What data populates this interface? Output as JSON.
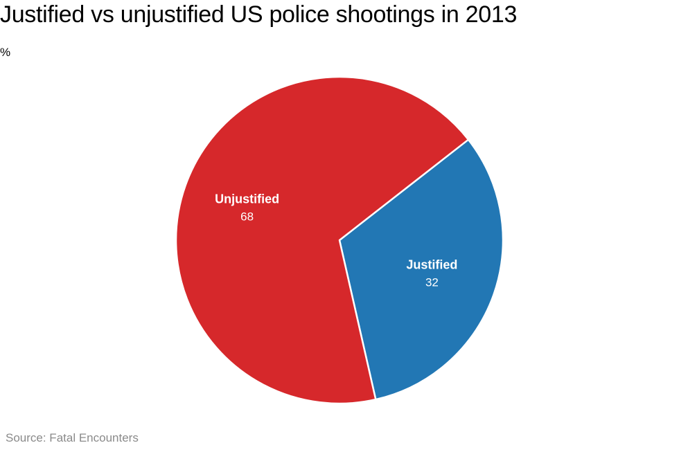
{
  "chart_data": {
    "type": "pie",
    "title": "Justified vs unjustified US police shootings in 2013",
    "unit": "%",
    "source": "Source: Fatal Encounters",
    "slices": [
      {
        "label": "Justified",
        "value": 32,
        "color": "#2277b4"
      },
      {
        "label": "Unjustified",
        "value": 68,
        "color": "#d6282b"
      }
    ],
    "legend": "none",
    "labels_on_slices": true
  }
}
